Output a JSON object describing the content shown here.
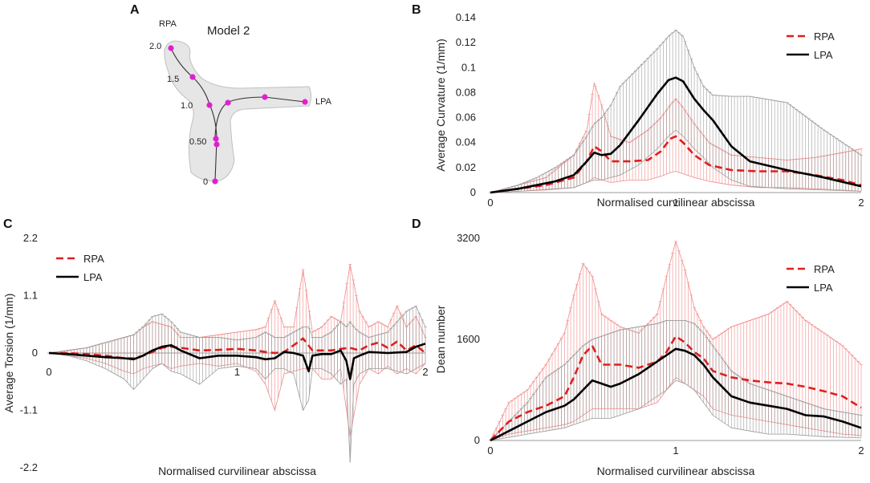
{
  "panels": {
    "A": {
      "letter": "A",
      "model_title": "Model 2",
      "label_rpa": "RPA",
      "label_lpa": "LPA",
      "markers": [
        "2.0",
        "1.5",
        "1.0",
        "0.50",
        "0"
      ]
    },
    "B": {
      "letter": "B"
    },
    "C": {
      "letter": "C"
    },
    "D": {
      "letter": "D"
    }
  },
  "colors": {
    "rpa": "#dd1f1f",
    "lpa": "#000000",
    "rpa_band": "#f08a8a",
    "lpa_band": "#9a9a9a",
    "vessel_fill": "#e6e6e6",
    "vessel_edge": "#bfbfbf",
    "marker": "#e020d0"
  },
  "chart_data": [
    {
      "id": "B",
      "type": "line",
      "ylabel": "Average Curvature (1/mm)",
      "xlabel": "Normalised curvilinear abscissa",
      "xlim": [
        0,
        2
      ],
      "ylim": [
        0,
        0.14
      ],
      "xticks": [
        "0",
        "1",
        "2"
      ],
      "yticks": [
        "0",
        "0.02",
        "0.04",
        "0.06",
        "0.08",
        "0.1",
        "0.12",
        "0.14"
      ],
      "legend": "top-right",
      "series": [
        {
          "name": "RPA",
          "style": "dashed",
          "x": [
            0,
            0.15,
            0.3,
            0.45,
            0.52,
            0.56,
            0.6,
            0.65,
            0.75,
            0.85,
            0.92,
            0.97,
            1.0,
            1.04,
            1.1,
            1.18,
            1.3,
            1.45,
            1.6,
            1.75,
            1.9,
            2.0
          ],
          "values": [
            0,
            0.003,
            0.006,
            0.012,
            0.025,
            0.037,
            0.033,
            0.025,
            0.025,
            0.026,
            0.033,
            0.043,
            0.045,
            0.04,
            0.03,
            0.022,
            0.018,
            0.017,
            0.017,
            0.014,
            0.01,
            0.006
          ],
          "band_low": [
            0,
            0.001,
            0.002,
            0.004,
            0.008,
            0.012,
            0.01,
            0.008,
            0.01,
            0.01,
            0.013,
            0.016,
            0.017,
            0.015,
            0.012,
            0.009,
            0.006,
            0.004,
            0.004,
            0.003,
            0.002,
            0.001
          ],
          "band_high": [
            0,
            0.006,
            0.012,
            0.03,
            0.05,
            0.088,
            0.07,
            0.045,
            0.04,
            0.05,
            0.06,
            0.07,
            0.075,
            0.068,
            0.055,
            0.04,
            0.03,
            0.028,
            0.026,
            0.028,
            0.032,
            0.035
          ]
        },
        {
          "name": "LPA",
          "style": "solid",
          "x": [
            0,
            0.15,
            0.25,
            0.35,
            0.45,
            0.52,
            0.56,
            0.6,
            0.65,
            0.7,
            0.8,
            0.9,
            0.96,
            1.0,
            1.04,
            1.1,
            1.15,
            1.2,
            1.3,
            1.4,
            1.6,
            1.8,
            2.0
          ],
          "values": [
            0,
            0.003,
            0.006,
            0.009,
            0.014,
            0.025,
            0.032,
            0.03,
            0.031,
            0.038,
            0.058,
            0.079,
            0.09,
            0.092,
            0.089,
            0.075,
            0.066,
            0.058,
            0.037,
            0.025,
            0.018,
            0.012,
            0.005
          ],
          "band_low": [
            0,
            0.001,
            0.002,
            0.003,
            0.004,
            0.008,
            0.01,
            0.01,
            0.012,
            0.014,
            0.022,
            0.035,
            0.045,
            0.05,
            0.045,
            0.035,
            0.028,
            0.02,
            0.01,
            0.005,
            0.003,
            0.002,
            0.001
          ],
          "band_high": [
            0,
            0.006,
            0.012,
            0.02,
            0.03,
            0.045,
            0.055,
            0.06,
            0.07,
            0.085,
            0.1,
            0.115,
            0.125,
            0.13,
            0.125,
            0.1,
            0.085,
            0.078,
            0.077,
            0.077,
            0.072,
            0.05,
            0.03
          ]
        }
      ]
    },
    {
      "id": "C",
      "type": "line",
      "ylabel": "Average Torsion (1/mm)",
      "xlabel": "Normalised curvilinear abscissa",
      "xlim": [
        0,
        2
      ],
      "ylim": [
        -2.2,
        2.2
      ],
      "xticks": [
        "0",
        "1",
        "2"
      ],
      "yticks": [
        "-2.2",
        "-1.1",
        "0",
        "1.1",
        "2.2"
      ],
      "legend": "top-left",
      "series": [
        {
          "name": "RPA",
          "style": "dashed",
          "x": [
            0,
            0.1,
            0.2,
            0.3,
            0.4,
            0.45,
            0.5,
            0.55,
            0.6,
            0.65,
            0.7,
            0.8,
            0.9,
            1.0,
            1.1,
            1.15,
            1.2,
            1.25,
            1.3,
            1.35,
            1.4,
            1.45,
            1.5,
            1.55,
            1.6,
            1.65,
            1.7,
            1.75,
            1.8,
            1.85,
            1.9,
            1.95,
            2.0
          ],
          "values": [
            0,
            0.0,
            -0.02,
            -0.05,
            -0.1,
            -0.1,
            -0.05,
            0.02,
            0.1,
            0.12,
            0.1,
            0.05,
            0.06,
            0.08,
            0.05,
            0.02,
            0.0,
            0.02,
            0.15,
            0.28,
            0.05,
            0.05,
            0.05,
            0.08,
            0.1,
            0.05,
            0.15,
            0.2,
            0.1,
            0.22,
            0.05,
            0.15,
            0.0
          ],
          "band_low": [
            0,
            -0.05,
            -0.1,
            -0.2,
            -0.35,
            -0.4,
            -0.3,
            -0.25,
            -0.2,
            -0.3,
            -0.25,
            -0.2,
            -0.25,
            -0.2,
            -0.35,
            -0.6,
            -1.1,
            -0.4,
            -0.35,
            -0.3,
            -0.3,
            -0.5,
            -0.5,
            -0.3,
            -1.6,
            -0.6,
            -0.3,
            -0.4,
            -0.25,
            -0.4,
            -0.3,
            -0.4,
            -0.2
          ],
          "band_high": [
            0,
            0.05,
            0.1,
            0.2,
            0.3,
            0.35,
            0.5,
            0.6,
            0.55,
            0.5,
            0.3,
            0.3,
            0.35,
            0.4,
            0.45,
            0.5,
            1.0,
            0.5,
            0.5,
            1.6,
            0.4,
            0.5,
            0.7,
            0.6,
            1.7,
            0.8,
            0.5,
            0.6,
            0.5,
            0.9,
            0.5,
            0.7,
            0.3
          ]
        },
        {
          "name": "LPA",
          "style": "solid",
          "x": [
            0,
            0.1,
            0.2,
            0.3,
            0.4,
            0.45,
            0.5,
            0.55,
            0.6,
            0.65,
            0.7,
            0.8,
            0.9,
            1.0,
            1.1,
            1.15,
            1.2,
            1.25,
            1.3,
            1.35,
            1.38,
            1.4,
            1.45,
            1.5,
            1.55,
            1.58,
            1.6,
            1.62,
            1.65,
            1.7,
            1.8,
            1.9,
            1.95,
            2.0
          ],
          "values": [
            0,
            -0.02,
            -0.05,
            -0.08,
            -0.1,
            -0.12,
            -0.05,
            0.05,
            0.12,
            0.15,
            0.05,
            -0.1,
            -0.05,
            -0.05,
            -0.08,
            -0.12,
            -0.1,
            0.02,
            0.0,
            -0.05,
            -0.35,
            -0.05,
            -0.02,
            -0.02,
            0.05,
            -0.15,
            -0.5,
            -0.1,
            -0.05,
            0.02,
            0.0,
            0.02,
            0.12,
            0.18
          ],
          "band_low": [
            0,
            -0.05,
            -0.15,
            -0.3,
            -0.5,
            -0.7,
            -0.5,
            -0.3,
            -0.2,
            -0.35,
            -0.4,
            -0.6,
            -0.3,
            -0.25,
            -0.3,
            -0.5,
            -0.3,
            -0.3,
            -0.4,
            -1.1,
            -0.9,
            -0.3,
            -0.3,
            -0.4,
            -0.6,
            -0.5,
            -2.1,
            -0.6,
            -0.4,
            -0.3,
            -0.3,
            -0.4,
            -0.3,
            -0.2
          ],
          "band_high": [
            0,
            0.05,
            0.1,
            0.2,
            0.3,
            0.35,
            0.5,
            0.7,
            0.75,
            0.6,
            0.4,
            0.3,
            0.3,
            0.25,
            0.3,
            0.4,
            0.3,
            0.3,
            0.4,
            0.5,
            0.5,
            0.3,
            0.3,
            0.4,
            0.6,
            0.5,
            0.6,
            0.5,
            0.4,
            0.3,
            0.4,
            0.8,
            0.9,
            0.5
          ]
        }
      ]
    },
    {
      "id": "D",
      "type": "line",
      "ylabel": "Dean number",
      "xlabel": "Normalised curvilinear abscissa",
      "xlim": [
        0,
        2
      ],
      "ylim": [
        0,
        3200
      ],
      "xticks": [
        "0",
        "1",
        "2"
      ],
      "yticks": [
        "0",
        "1600",
        "3200"
      ],
      "legend": "top-right",
      "series": [
        {
          "name": "RPA",
          "style": "dashed",
          "x": [
            0,
            0.1,
            0.2,
            0.3,
            0.4,
            0.45,
            0.5,
            0.55,
            0.6,
            0.65,
            0.7,
            0.8,
            0.9,
            0.95,
            1.0,
            1.05,
            1.1,
            1.15,
            1.2,
            1.3,
            1.4,
            1.5,
            1.6,
            1.7,
            1.8,
            1.9,
            2.0
          ],
          "values": [
            0,
            300,
            450,
            550,
            700,
            1000,
            1350,
            1500,
            1200,
            1200,
            1200,
            1150,
            1250,
            1400,
            1650,
            1550,
            1400,
            1300,
            1100,
            1000,
            950,
            920,
            900,
            850,
            780,
            700,
            520
          ],
          "band_low": [
            0,
            100,
            150,
            200,
            250,
            300,
            400,
            500,
            500,
            500,
            500,
            500,
            600,
            800,
            1000,
            900,
            800,
            700,
            500,
            400,
            350,
            300,
            250,
            200,
            150,
            100,
            80
          ],
          "band_high": [
            0,
            600,
            800,
            1200,
            1700,
            2300,
            2800,
            2600,
            2000,
            1900,
            1800,
            1700,
            2000,
            2600,
            3150,
            2700,
            2100,
            1800,
            1600,
            1800,
            1900,
            2000,
            2200,
            1900,
            1700,
            1500,
            1200
          ]
        },
        {
          "name": "LPA",
          "style": "solid",
          "x": [
            0,
            0.1,
            0.2,
            0.3,
            0.4,
            0.45,
            0.5,
            0.55,
            0.6,
            0.65,
            0.7,
            0.8,
            0.9,
            0.95,
            1.0,
            1.05,
            1.1,
            1.15,
            1.2,
            1.3,
            1.4,
            1.5,
            1.6,
            1.7,
            1.8,
            1.9,
            2.0
          ],
          "values": [
            0,
            150,
            300,
            450,
            550,
            650,
            800,
            950,
            900,
            850,
            900,
            1050,
            1250,
            1350,
            1450,
            1420,
            1350,
            1200,
            1000,
            700,
            600,
            550,
            500,
            400,
            380,
            300,
            200
          ],
          "band_low": [
            0,
            50,
            100,
            150,
            200,
            250,
            300,
            350,
            350,
            350,
            400,
            500,
            700,
            800,
            950,
            900,
            800,
            600,
            400,
            200,
            150,
            100,
            100,
            80,
            60,
            50,
            40
          ],
          "band_high": [
            0,
            300,
            600,
            1000,
            1200,
            1350,
            1500,
            1600,
            1650,
            1700,
            1750,
            1800,
            1850,
            1900,
            1900,
            1900,
            1850,
            1700,
            1500,
            1100,
            900,
            800,
            700,
            600,
            500,
            450,
            400
          ]
        }
      ]
    }
  ]
}
